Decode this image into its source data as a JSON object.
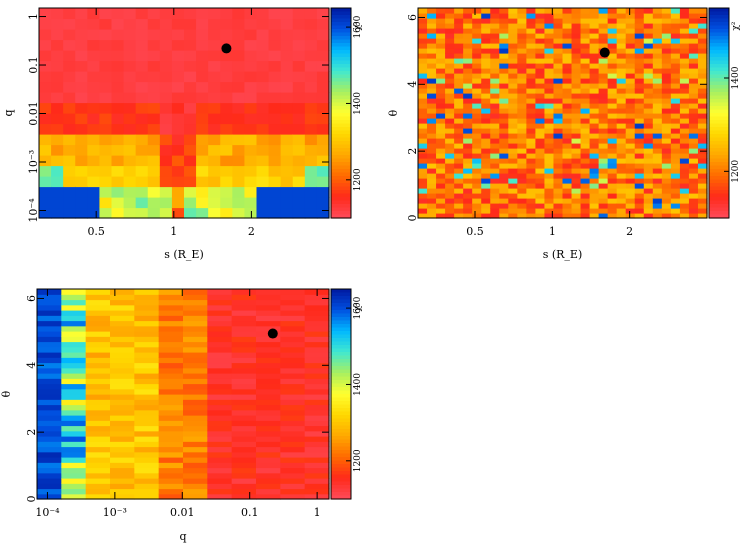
{
  "colorscale": [
    "#ff4b5a",
    "#ff2a1a",
    "#ff6a00",
    "#ffa800",
    "#ffd800",
    "#ffff30",
    "#a8f060",
    "#40e8d0",
    "#00b8ff",
    "#0050e0",
    "#0018a0"
  ],
  "chart_data": [
    {
      "type": "heatmap",
      "xlabel": "s (R_E)",
      "ylabel": "q",
      "colorbar_label": "χ²",
      "colorbar_ticks": [
        "1600",
        "1400",
        "1200"
      ],
      "x_scale": "log",
      "y_scale": "log",
      "xlim": [
        0.3,
        4.0
      ],
      "ylim": [
        7e-05,
        1.5
      ],
      "x_ticks": [
        {
          "v": 0.5,
          "label": "0.5"
        },
        {
          "v": 1,
          "label": "1"
        },
        {
          "v": 2,
          "label": "2"
        }
      ],
      "y_ticks": [
        {
          "v": 1,
          "label": "1"
        },
        {
          "v": 0.1,
          "label": "0.1"
        },
        {
          "v": 0.01,
          "label": "0.01"
        },
        {
          "v": 0.001,
          "label": "10⁻³"
        },
        {
          "v": 0.0001,
          "label": "10⁻⁴"
        }
      ],
      "marker": {
        "x": 1.6,
        "y": 0.22
      },
      "colorbar_range": [
        1100,
        1650
      ],
      "grid": false
    },
    {
      "type": "heatmap",
      "xlabel": "s (R_E)",
      "ylabel": "θ",
      "colorbar_label": "χ²",
      "colorbar_ticks": [
        "1400",
        "1200"
      ],
      "x_scale": "log",
      "y_scale": "linear",
      "xlim": [
        0.3,
        4.0
      ],
      "ylim": [
        0,
        6.283
      ],
      "x_ticks": [
        {
          "v": 0.5,
          "label": "0.5"
        },
        {
          "v": 1,
          "label": "1"
        },
        {
          "v": 2,
          "label": "2"
        }
      ],
      "y_ticks": [
        {
          "v": 0,
          "label": "0"
        },
        {
          "v": 2,
          "label": "2"
        },
        {
          "v": 4,
          "label": "4"
        },
        {
          "v": 6,
          "label": "6"
        }
      ],
      "marker": {
        "x": 1.6,
        "y": 4.95
      },
      "colorbar_range": [
        1100,
        1550
      ],
      "grid": false
    },
    {
      "type": "heatmap",
      "xlabel": "q",
      "ylabel": "θ",
      "colorbar_label": "χ²",
      "colorbar_ticks": [
        "1600",
        "1400",
        "1200"
      ],
      "x_scale": "log",
      "y_scale": "linear",
      "xlim": [
        7e-05,
        1.5
      ],
      "ylim": [
        0,
        6.283
      ],
      "x_ticks": [
        {
          "v": 0.0001,
          "label": "10⁻⁴"
        },
        {
          "v": 0.001,
          "label": "10⁻³"
        },
        {
          "v": 0.01,
          "label": "0.01"
        },
        {
          "v": 0.1,
          "label": "0.1"
        },
        {
          "v": 1,
          "label": "1"
        }
      ],
      "y_ticks": [
        {
          "v": 0,
          "label": "0"
        },
        {
          "v": 2,
          "label": "2"
        },
        {
          "v": 4,
          "label": "4"
        },
        {
          "v": 6,
          "label": "6"
        }
      ],
      "marker": {
        "x": 0.22,
        "y": 4.95
      },
      "colorbar_range": [
        1100,
        1650
      ],
      "grid": false
    }
  ]
}
